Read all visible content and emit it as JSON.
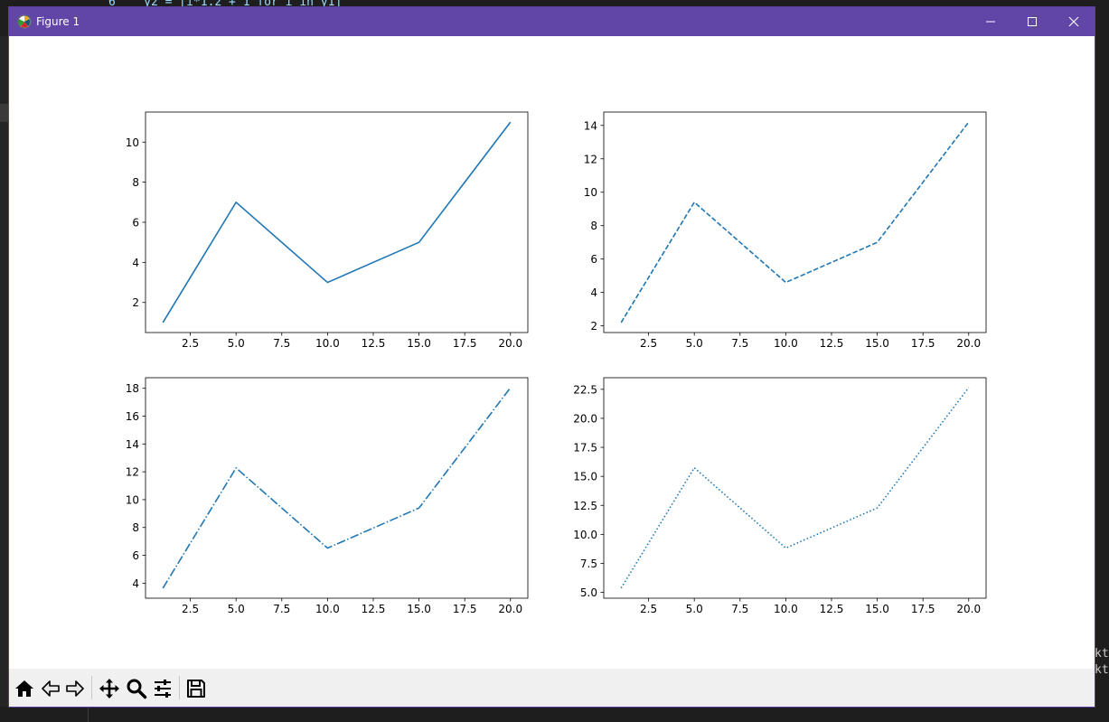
{
  "window": {
    "title": "Figure 1"
  },
  "background_editor": {
    "top_line": "6    y2 = [i*1.2 + 1 for i in y1]",
    "right_fragments": [
      "kt",
      "kt"
    ]
  },
  "toolbar": {
    "items": [
      {
        "name": "home-icon"
      },
      {
        "name": "back-icon"
      },
      {
        "name": "forward-icon"
      },
      {
        "name": "pan-icon"
      },
      {
        "name": "zoom-icon"
      },
      {
        "name": "configure-subplots-icon"
      },
      {
        "name": "save-icon"
      }
    ]
  },
  "colors": {
    "line": "#1f77b4",
    "titlebar": "#6146a8",
    "toolbar": "#f0f0f0"
  },
  "chart_data": [
    {
      "type": "line",
      "linestyle": "solid",
      "x": [
        1,
        5,
        10,
        15,
        20
      ],
      "y": [
        1,
        7,
        3,
        5,
        11
      ],
      "xlim": [
        0.05,
        20.95
      ],
      "ylim": [
        0.5,
        11.5
      ],
      "xticks": [
        "2.5",
        "5.0",
        "7.5",
        "10.0",
        "12.5",
        "15.0",
        "17.5",
        "20.0"
      ],
      "yticks": [
        "2",
        "4",
        "6",
        "8",
        "10"
      ],
      "title": "",
      "xlabel": "",
      "ylabel": "",
      "grid": false
    },
    {
      "type": "line",
      "linestyle": "dashed",
      "x": [
        1,
        5,
        10,
        15,
        20
      ],
      "y": [
        2.2,
        9.4,
        4.6,
        7,
        14.2
      ],
      "xlim": [
        0.05,
        20.95
      ],
      "ylim": [
        1.6,
        14.8
      ],
      "xticks": [
        "2.5",
        "5.0",
        "7.5",
        "10.0",
        "12.5",
        "15.0",
        "17.5",
        "20.0"
      ],
      "yticks": [
        "2",
        "4",
        "6",
        "8",
        "10",
        "12",
        "14"
      ],
      "title": "",
      "xlabel": "",
      "ylabel": "",
      "grid": false
    },
    {
      "type": "line",
      "linestyle": "dashdot",
      "x": [
        1,
        5,
        10,
        15,
        20
      ],
      "y": [
        3.64,
        12.28,
        6.52,
        9.4,
        18.04
      ],
      "xlim": [
        0.05,
        20.95
      ],
      "ylim": [
        2.92,
        18.76
      ],
      "xticks": [
        "2.5",
        "5.0",
        "7.5",
        "10.0",
        "12.5",
        "15.0",
        "17.5",
        "20.0"
      ],
      "yticks": [
        "4",
        "6",
        "8",
        "10",
        "12",
        "14",
        "16",
        "18"
      ],
      "title": "",
      "xlabel": "",
      "ylabel": "",
      "grid": false
    },
    {
      "type": "line",
      "linestyle": "dotted",
      "x": [
        1,
        5,
        10,
        15,
        20
      ],
      "y": [
        5.37,
        15.74,
        8.82,
        12.28,
        22.65
      ],
      "xlim": [
        0.05,
        20.95
      ],
      "ylim": [
        4.5,
        23.5
      ],
      "xticks": [
        "2.5",
        "5.0",
        "7.5",
        "10.0",
        "12.5",
        "15.0",
        "17.5",
        "20.0"
      ],
      "yticks": [
        "5.0",
        "7.5",
        "10.0",
        "12.5",
        "15.0",
        "17.5",
        "20.0",
        "22.5"
      ],
      "title": "",
      "xlabel": "",
      "ylabel": "",
      "grid": false
    }
  ]
}
